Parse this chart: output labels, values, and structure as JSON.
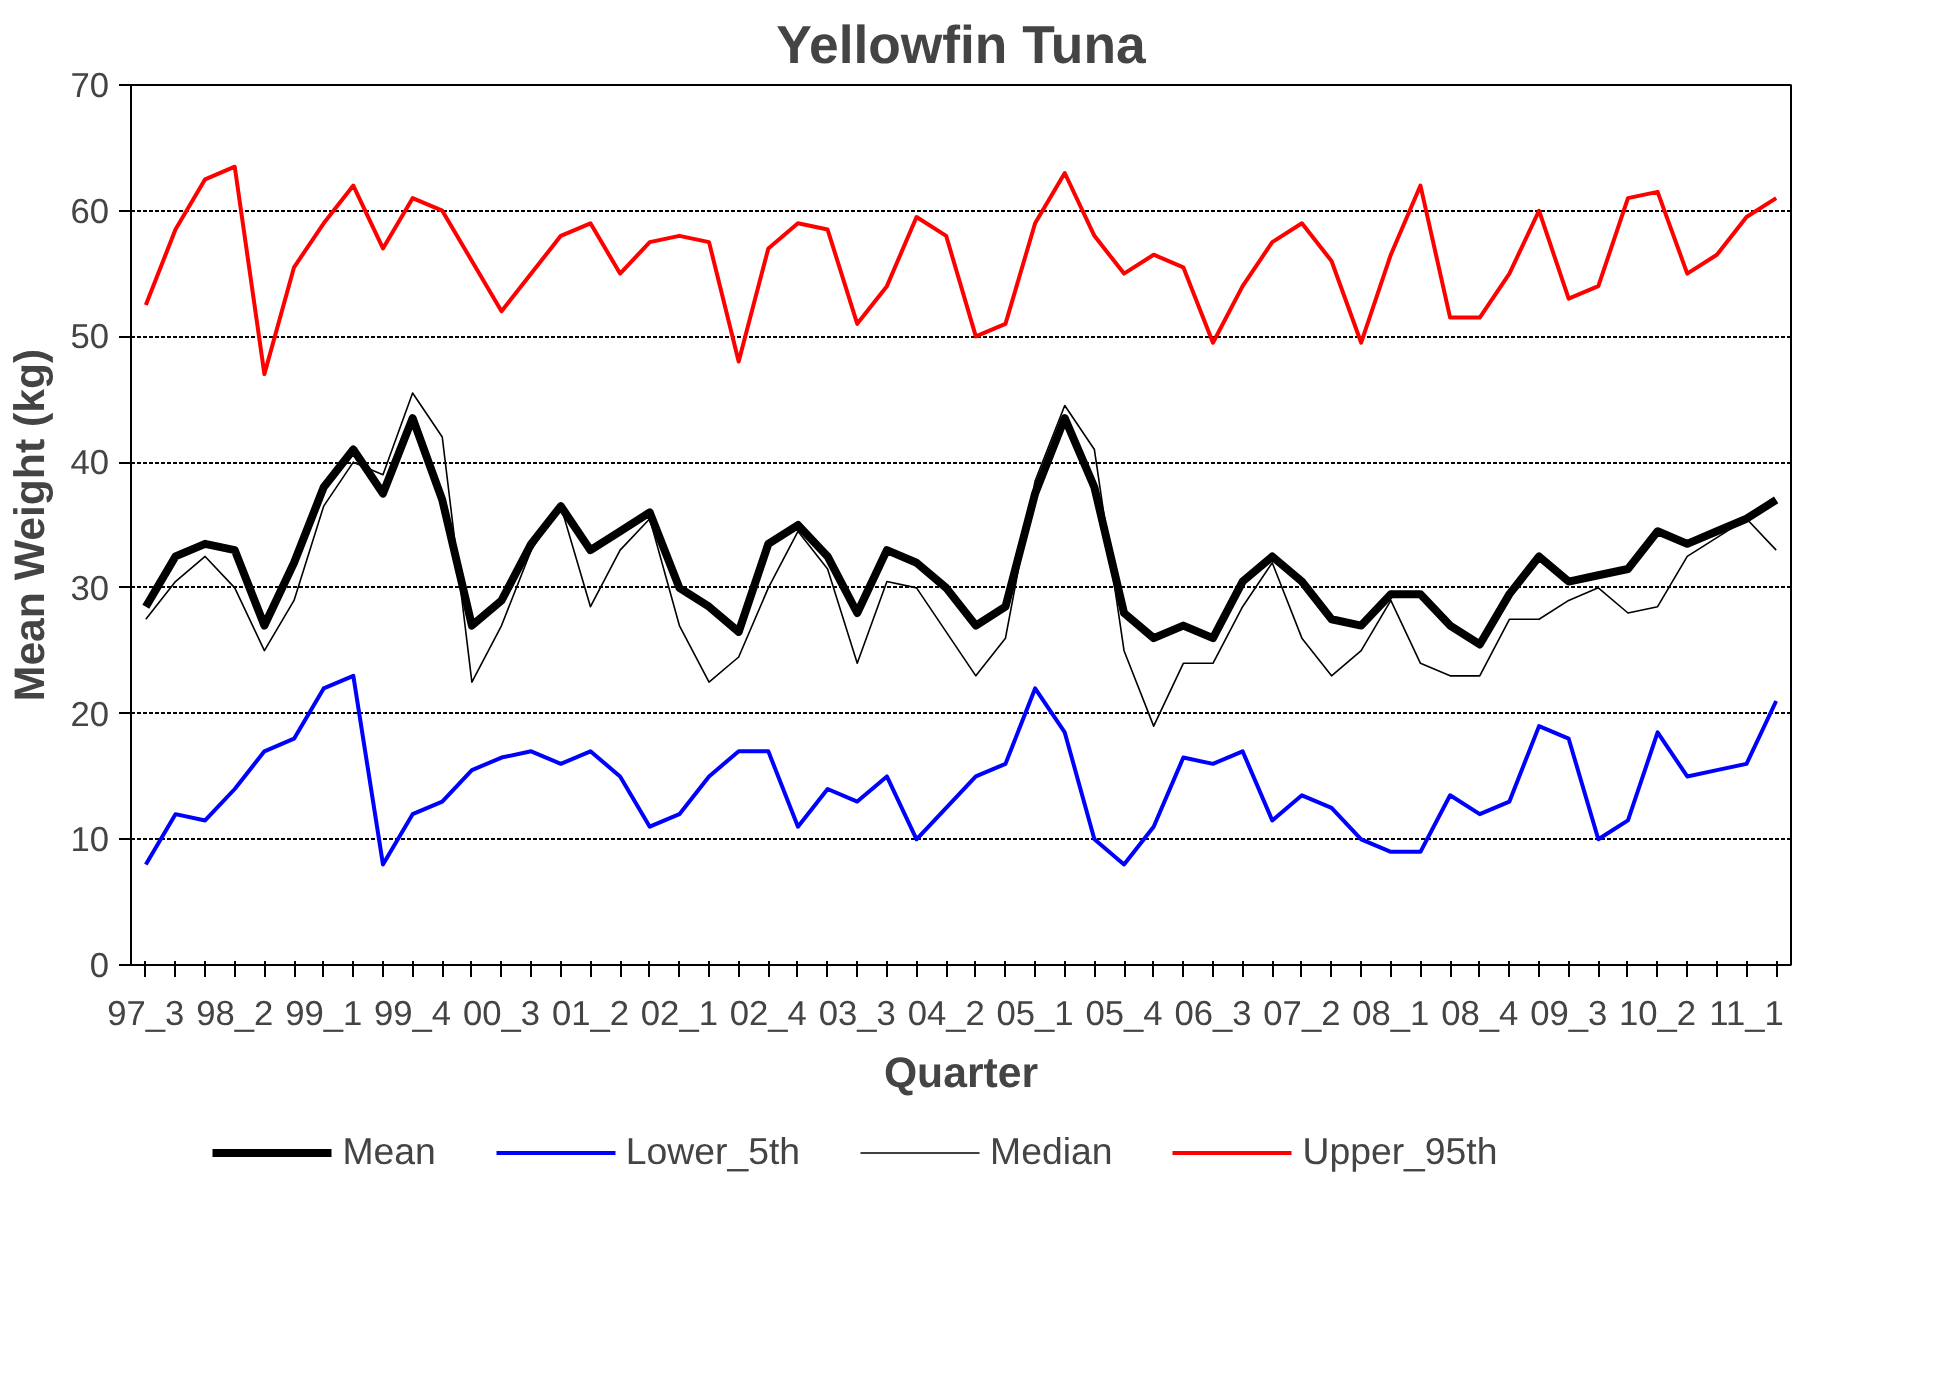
{
  "chart_data": {
    "type": "line",
    "title": "Yellowfin Tuna",
    "xlabel": "Quarter",
    "ylabel": "Mean Weight (kg)",
    "categories": [
      "97_3",
      null,
      null,
      "98_2",
      null,
      null,
      "99_1",
      null,
      null,
      "99_4",
      null,
      null,
      "00_3",
      null,
      null,
      "01_2",
      null,
      null,
      "02_1",
      null,
      null,
      "02_4",
      null,
      null,
      "03_3",
      null,
      null,
      "04_2",
      null,
      null,
      "05_1",
      null,
      null,
      "05_4",
      null,
      null,
      "06_3",
      null,
      null,
      "07_2",
      null,
      null,
      "08_1",
      null,
      null,
      "08_4",
      null,
      null,
      "09_3",
      null,
      null,
      "10_2",
      null,
      null,
      "11_1",
      null
    ],
    "ylim": [
      0,
      70
    ],
    "yticks": [
      0,
      10,
      20,
      30,
      40,
      50,
      60,
      70
    ],
    "grid": "y",
    "legend": "bottom",
    "marker": "none",
    "series": [
      {
        "name": "Mean",
        "color": "#000000",
        "values": [
          28.5,
          32.5,
          33.5,
          33,
          27,
          32,
          38,
          41,
          37.5,
          43.5,
          37,
          27,
          29,
          33.5,
          36.5,
          33,
          34.5,
          36,
          30,
          28.5,
          26.5,
          33.5,
          35,
          32.5,
          28,
          33,
          32,
          30,
          27,
          28.5,
          37.5,
          43.5,
          38,
          28,
          26,
          27,
          26,
          30.5,
          32.5,
          30.5,
          27.5,
          27,
          29.5,
          29.5,
          27,
          25.5,
          29.5,
          32.5,
          30.5,
          31,
          31.5,
          34.5,
          33.5,
          34.5,
          35.5,
          37
        ]
      },
      {
        "name": "Lower_5th",
        "color": "#0000ff",
        "values": [
          8,
          12,
          11.5,
          14,
          17,
          18,
          22,
          23,
          8,
          12,
          13,
          15.5,
          16.5,
          17,
          16,
          17,
          15,
          11,
          12,
          15,
          17,
          17,
          11,
          14,
          13,
          15,
          10,
          12.5,
          15,
          16,
          22,
          18.5,
          10,
          8,
          11,
          16.5,
          16,
          17,
          11.5,
          13.5,
          12.5,
          10,
          9,
          9,
          13.5,
          12,
          13,
          19,
          18,
          10,
          11.5,
          18.5,
          15,
          15.5,
          16,
          21
        ]
      },
      {
        "name": "Median",
        "color": "#000000",
        "values": [
          27.5,
          30.5,
          32.5,
          30,
          25,
          29,
          36.5,
          40,
          39,
          45.5,
          42,
          22.5,
          27,
          33,
          36.5,
          28.5,
          33,
          35.5,
          27,
          22.5,
          24.5,
          30,
          34.5,
          31.5,
          24,
          30.5,
          30,
          26.5,
          23,
          26,
          38.5,
          44.5,
          41,
          25,
          19,
          24,
          24,
          28.5,
          32,
          26,
          23,
          25,
          29,
          24,
          23,
          23,
          27.5,
          27.5,
          29,
          30,
          28,
          28.5,
          32.5,
          34,
          35.5,
          33
        ]
      },
      {
        "name": "Upper_95th",
        "color": "#ff0000",
        "values": [
          52.5,
          58.5,
          62.5,
          63.5,
          47,
          55.5,
          59,
          62,
          57,
          61,
          60,
          56,
          52,
          55,
          58,
          59,
          55,
          57.5,
          58,
          57.5,
          48,
          57,
          59,
          58.5,
          51,
          54,
          59.5,
          58,
          50,
          51,
          59,
          63,
          58,
          55,
          56.5,
          55.5,
          49.5,
          54,
          57.5,
          59,
          56,
          49.5,
          56.5,
          62,
          51.5,
          51.5,
          55,
          60,
          53,
          54,
          61,
          61.5,
          55,
          56.5,
          59.5,
          61
        ]
      }
    ]
  }
}
